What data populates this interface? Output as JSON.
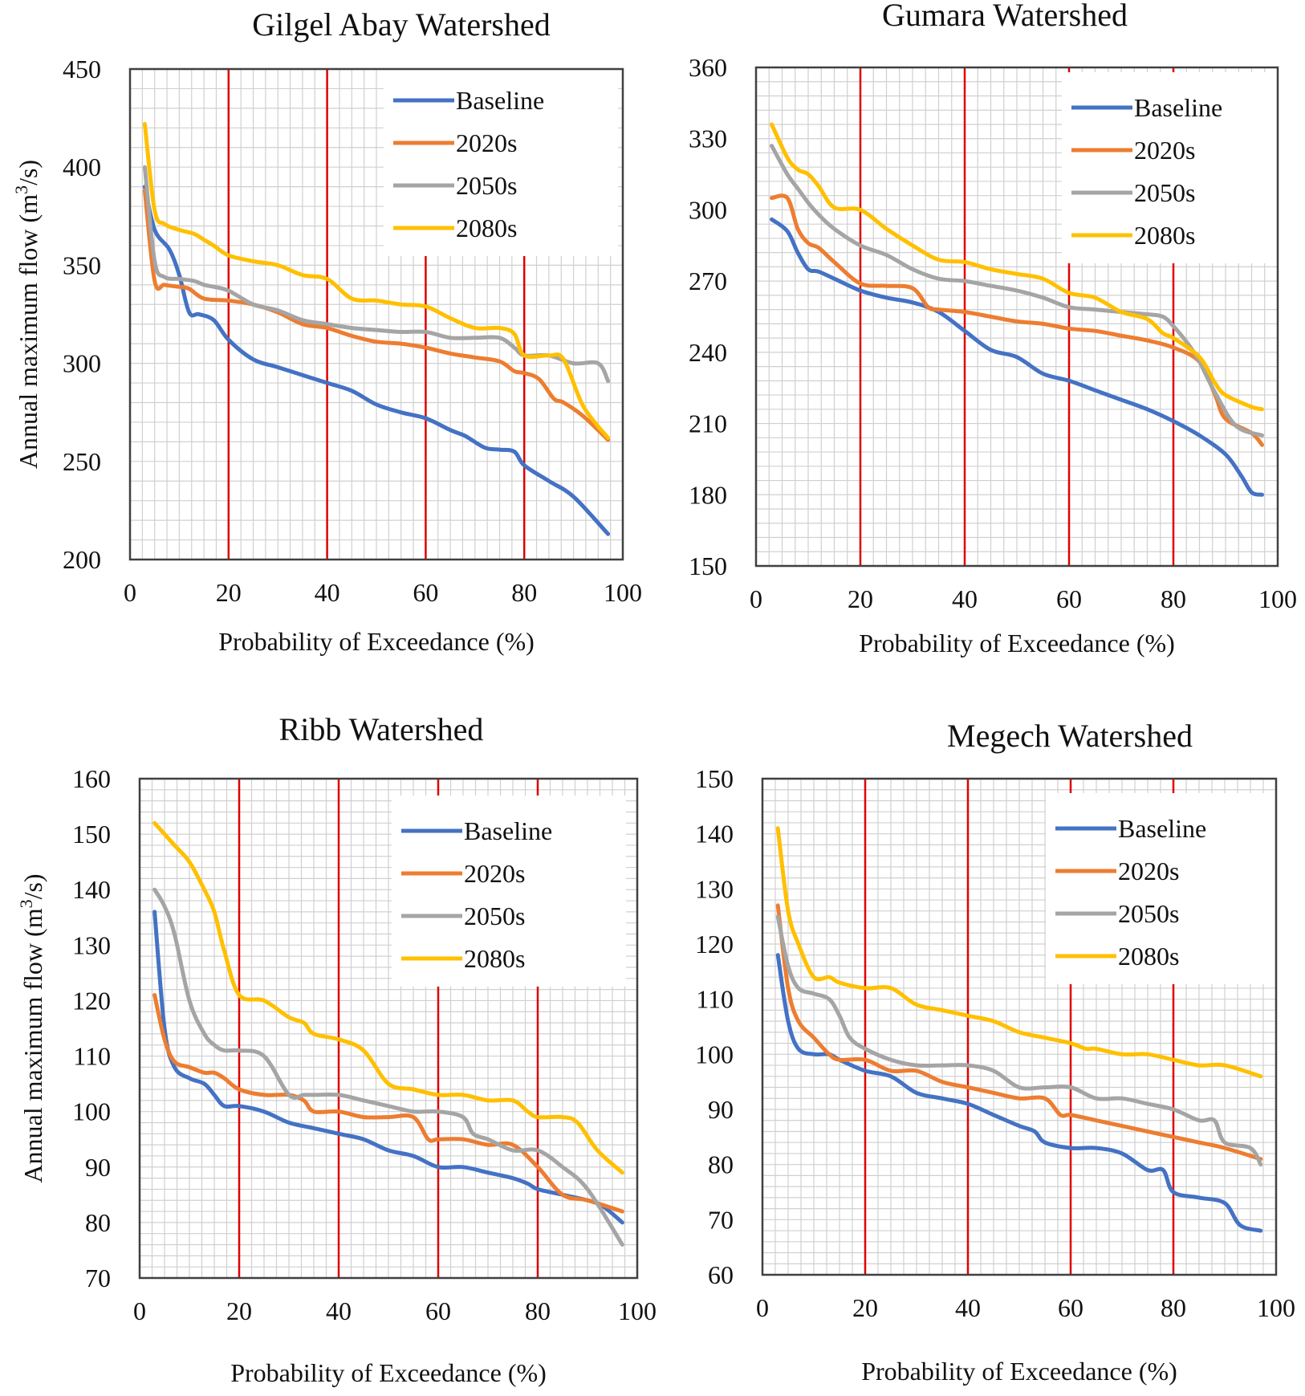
{
  "figure": {
    "name": "flow-duration-curves"
  },
  "chart_data": [
    {
      "type": "line",
      "title": "Gilgel Abay Watershed",
      "xlabel": "Probability of Exceedance (%)",
      "ylabel": "Annual maximum flow (m³/s)",
      "xlim": [
        0,
        100
      ],
      "ylim": [
        200,
        450
      ],
      "xticks": [
        "0",
        "20",
        "40",
        "60",
        "80",
        "100"
      ],
      "yticks": [
        "200",
        "250",
        "300",
        "350",
        "400",
        "450"
      ],
      "x_interval": 20,
      "y_interval": 50,
      "grid": true,
      "vlines": [
        20,
        40,
        60,
        80
      ],
      "legend_position": "top-right",
      "series": [
        {
          "name": "Baseline",
          "x": [
            3,
            5,
            8,
            10,
            12,
            14,
            17,
            20,
            25,
            30,
            35,
            40,
            45,
            50,
            55,
            60,
            65,
            68,
            72,
            75,
            78,
            80,
            85,
            90,
            97
          ],
          "values": [
            390,
            368,
            358,
            345,
            326,
            325,
            322,
            312,
            302,
            298,
            294,
            290,
            286,
            279,
            275,
            272,
            266,
            263,
            257,
            256,
            255,
            248,
            240,
            232,
            213
          ]
        },
        {
          "name": "2020s",
          "x": [
            3,
            5,
            7,
            10,
            12,
            15,
            20,
            25,
            30,
            35,
            40,
            45,
            50,
            55,
            60,
            65,
            70,
            75,
            78,
            80,
            83,
            86,
            88,
            92,
            97
          ],
          "values": [
            388,
            342,
            340,
            339,
            338,
            333,
            332,
            330,
            326,
            320,
            318,
            314,
            311,
            310,
            308,
            305,
            303,
            301,
            296,
            295,
            292,
            282,
            280,
            273,
            261
          ]
        },
        {
          "name": "2050s",
          "x": [
            3,
            5,
            7,
            10,
            13,
            15,
            17,
            20,
            25,
            30,
            35,
            40,
            45,
            50,
            55,
            60,
            65,
            70,
            75,
            78,
            80,
            85,
            90,
            95,
            97
          ],
          "values": [
            400,
            352,
            344,
            343,
            342,
            340,
            339,
            337,
            330,
            327,
            322,
            320,
            318,
            317,
            316,
            316,
            313,
            313,
            313,
            308,
            304,
            304,
            300,
            300,
            291
          ]
        },
        {
          "name": "2080s",
          "x": [
            3,
            5,
            7,
            10,
            13,
            15,
            17,
            20,
            25,
            30,
            35,
            40,
            45,
            50,
            55,
            60,
            65,
            70,
            75,
            78,
            80,
            85,
            88,
            92,
            97
          ],
          "values": [
            422,
            378,
            371,
            368,
            366,
            363,
            360,
            355,
            352,
            350,
            345,
            343,
            333,
            332,
            330,
            329,
            323,
            318,
            318,
            315,
            304,
            304,
            302,
            278,
            262
          ]
        }
      ]
    },
    {
      "type": "line",
      "title": "Gumara Watershed",
      "xlabel": "Probability of Exceedance (%)",
      "ylabel": "",
      "xlim": [
        0,
        100
      ],
      "ylim": [
        150,
        360
      ],
      "xticks": [
        "0",
        "20",
        "40",
        "60",
        "80",
        "100"
      ],
      "yticks": [
        "150",
        "180",
        "210",
        "240",
        "270",
        "300",
        "330",
        "360"
      ],
      "x_interval": 20,
      "y_interval": 30,
      "grid": true,
      "vlines": [
        20,
        40,
        60,
        80
      ],
      "legend_position": "top-right",
      "series": [
        {
          "name": "Baseline",
          "x": [
            3,
            6,
            8,
            10,
            12,
            15,
            20,
            25,
            30,
            35,
            40,
            45,
            50,
            55,
            60,
            65,
            70,
            75,
            80,
            85,
            90,
            93,
            95,
            97
          ],
          "values": [
            296,
            291,
            282,
            275,
            274,
            271,
            266,
            263,
            261,
            257,
            249,
            241,
            238,
            231,
            228,
            224,
            220,
            216,
            211,
            205,
            197,
            188,
            181,
            180
          ]
        },
        {
          "name": "2020s",
          "x": [
            3,
            6,
            8,
            10,
            12,
            15,
            20,
            25,
            30,
            33,
            35,
            40,
            45,
            50,
            55,
            60,
            65,
            70,
            75,
            80,
            85,
            88,
            90,
            95,
            97
          ],
          "values": [
            305,
            305,
            292,
            286,
            284,
            278,
            269,
            268,
            267,
            259,
            258,
            257,
            255,
            253,
            252,
            250,
            249,
            247,
            245,
            242,
            236,
            222,
            212,
            206,
            201
          ]
        },
        {
          "name": "2050s",
          "x": [
            3,
            6,
            8,
            10,
            12,
            15,
            20,
            25,
            30,
            35,
            40,
            45,
            50,
            55,
            60,
            65,
            70,
            75,
            78,
            80,
            83,
            85,
            88,
            92,
            97
          ],
          "values": [
            327,
            315,
            309,
            303,
            298,
            292,
            285,
            281,
            275,
            271,
            270,
            268,
            266,
            263,
            259,
            258,
            257,
            256,
            255,
            251,
            243,
            236,
            223,
            209,
            205
          ]
        },
        {
          "name": "2080s",
          "x": [
            3,
            6,
            8,
            10,
            12,
            15,
            20,
            25,
            30,
            35,
            40,
            45,
            50,
            55,
            60,
            65,
            70,
            75,
            78,
            80,
            85,
            88,
            90,
            95,
            97
          ],
          "values": [
            336,
            322,
            317,
            315,
            310,
            301,
            300,
            292,
            285,
            279,
            278,
            275,
            273,
            271,
            265,
            263,
            257,
            254,
            248,
            246,
            238,
            227,
            222,
            217,
            216
          ]
        }
      ]
    },
    {
      "type": "line",
      "title": "Ribb Watershed",
      "xlabel": "Probability of Exceedance (%)",
      "ylabel": "Annual maximum flow (m³/s)",
      "xlim": [
        0,
        100
      ],
      "ylim": [
        70,
        160
      ],
      "xticks": [
        "0",
        "20",
        "40",
        "60",
        "80",
        "100"
      ],
      "yticks": [
        "70",
        "80",
        "90",
        "100",
        "110",
        "120",
        "130",
        "140",
        "150",
        "160"
      ],
      "x_interval": 20,
      "y_interval": 10,
      "grid": true,
      "vlines": [
        20,
        40,
        60,
        80
      ],
      "legend_position": "top-right",
      "series": [
        {
          "name": "Baseline",
          "x": [
            3,
            5,
            7,
            10,
            13,
            15,
            17,
            20,
            25,
            30,
            35,
            40,
            45,
            50,
            55,
            60,
            65,
            70,
            75,
            78,
            80,
            85,
            90,
            93,
            97
          ],
          "values": [
            136,
            115,
            108,
            106,
            105,
            103,
            101,
            101,
            100,
            98,
            97,
            96,
            95,
            93,
            92,
            90,
            90,
            89,
            88,
            87,
            86,
            85,
            84,
            83,
            80
          ]
        },
        {
          "name": "2020s",
          "x": [
            3,
            5,
            7,
            10,
            13,
            15,
            17,
            20,
            25,
            30,
            33,
            35,
            40,
            45,
            50,
            55,
            58,
            60,
            65,
            70,
            75,
            80,
            85,
            90,
            97
          ],
          "values": [
            121,
            113,
            109,
            108,
            107,
            107,
            106,
            104,
            103,
            103,
            102,
            100,
            100,
            99,
            99,
            99,
            95,
            95,
            95,
            94,
            94,
            90,
            85,
            84,
            82
          ]
        },
        {
          "name": "2050s",
          "x": [
            3,
            5,
            7,
            10,
            13,
            15,
            17,
            20,
            25,
            30,
            33,
            35,
            40,
            45,
            50,
            55,
            60,
            65,
            67,
            70,
            75,
            80,
            85,
            90,
            97
          ],
          "values": [
            140,
            137,
            132,
            120,
            114,
            112,
            111,
            111,
            110,
            103,
            103,
            103,
            103,
            102,
            101,
            100,
            100,
            99,
            96,
            95,
            93,
            93,
            90,
            86,
            76
          ]
        },
        {
          "name": "2080s",
          "x": [
            3,
            5,
            7,
            10,
            13,
            15,
            17,
            20,
            25,
            30,
            33,
            35,
            40,
            45,
            50,
            55,
            60,
            65,
            70,
            75,
            78,
            80,
            85,
            88,
            92,
            97
          ],
          "values": [
            152,
            150,
            148,
            145,
            140,
            136,
            129,
            121,
            120,
            117,
            116,
            114,
            113,
            111,
            105,
            104,
            103,
            103,
            102,
            102,
            100,
            99,
            99,
            98,
            93,
            89
          ]
        }
      ]
    },
    {
      "type": "line",
      "title": "Megech Watershed",
      "xlabel": "Probability of Exceedance (%)",
      "ylabel": "",
      "xlim": [
        0,
        100
      ],
      "ylim": [
        60,
        150
      ],
      "xticks": [
        "0",
        "20",
        "40",
        "60",
        "80",
        "100"
      ],
      "yticks": [
        "60",
        "70",
        "80",
        "90",
        "100",
        "110",
        "120",
        "130",
        "140",
        "150"
      ],
      "x_interval": 20,
      "y_interval": 10,
      "grid": true,
      "vlines": [
        20,
        40,
        60,
        80
      ],
      "legend_position": "top-right",
      "series": [
        {
          "name": "Baseline",
          "x": [
            3,
            5,
            7,
            10,
            13,
            15,
            20,
            25,
            30,
            35,
            40,
            45,
            50,
            53,
            55,
            60,
            65,
            70,
            75,
            78,
            80,
            85,
            90,
            93,
            97
          ],
          "values": [
            118,
            106,
            101,
            100,
            100,
            99,
            97,
            96,
            93,
            92,
            91,
            89,
            87,
            86,
            84,
            83,
            83,
            82,
            79,
            79,
            75,
            74,
            73,
            69,
            68
          ]
        },
        {
          "name": "2020s",
          "x": [
            3,
            5,
            7,
            10,
            13,
            15,
            20,
            25,
            30,
            35,
            40,
            45,
            50,
            55,
            58,
            60,
            65,
            70,
            75,
            80,
            85,
            90,
            97
          ],
          "values": [
            127,
            112,
            106,
            103,
            100,
            99,
            99,
            97,
            97,
            95,
            94,
            93,
            92,
            92,
            89,
            89,
            88,
            87,
            86,
            85,
            84,
            83,
            81
          ]
        },
        {
          "name": "2050s",
          "x": [
            3,
            5,
            7,
            10,
            13,
            15,
            17,
            20,
            25,
            30,
            35,
            40,
            45,
            50,
            55,
            60,
            65,
            70,
            75,
            80,
            85,
            88,
            90,
            95,
            97
          ],
          "values": [
            125,
            116,
            112,
            111,
            110,
            107,
            103,
            101,
            99,
            98,
            98,
            98,
            97,
            94,
            94,
            94,
            92,
            92,
            91,
            90,
            88,
            88,
            84,
            83,
            80
          ]
        },
        {
          "name": "2080s",
          "x": [
            3,
            5,
            7,
            10,
            13,
            15,
            20,
            25,
            30,
            35,
            40,
            45,
            50,
            55,
            60,
            63,
            65,
            70,
            75,
            80,
            85,
            90,
            97
          ],
          "values": [
            141,
            126,
            120,
            114,
            114,
            113,
            112,
            112,
            109,
            108,
            107,
            106,
            104,
            103,
            102,
            101,
            101,
            100,
            100,
            99,
            98,
            98,
            96
          ]
        }
      ]
    }
  ],
  "colors": {
    "Baseline": "#4472C4",
    "2020s": "#ED7D31",
    "2050s": "#A5A5A5",
    "2080s": "#FFC000",
    "vline": "#E00000",
    "grid": "#D0D0D0",
    "axis": "#404040"
  }
}
